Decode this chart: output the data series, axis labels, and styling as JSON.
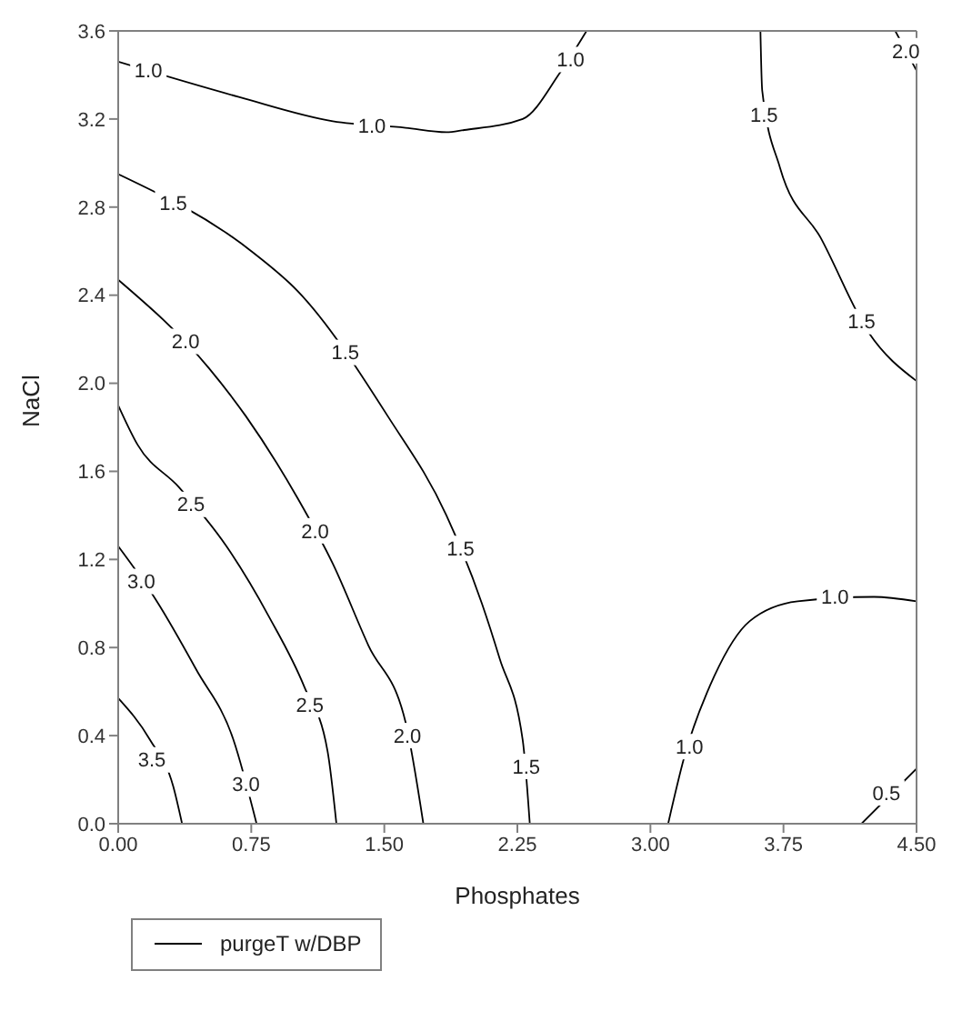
{
  "chart_data": {
    "type": "line",
    "xlabel": "Phosphates",
    "ylabel": "NaCl",
    "xlim": [
      0,
      4.5
    ],
    "ylim": [
      0,
      3.6
    ],
    "xticks": [
      {
        "value": 0,
        "label": "0.00"
      },
      0.75,
      {
        "value": 1.5,
        "label": "1.50"
      },
      2.25,
      {
        "value": 3,
        "label": "3.00"
      },
      3.75,
      {
        "value": 4.5,
        "label": "4.50"
      }
    ],
    "yticks": [
      {
        "value": 0,
        "label": "0.0"
      },
      0.4,
      0.8,
      1.2,
      1.6,
      {
        "value": 2,
        "label": "2.0"
      },
      2.4,
      2.8,
      3.2,
      3.6
    ],
    "legend": "bottom left",
    "line_style": "solid",
    "grid": false,
    "series": [
      {
        "name": "purgeT w/DBP",
        "color": "#000000",
        "x": [
          0,
          0.68,
          1.21,
          1.62,
          1.85,
          1.95,
          2.28,
          2.49,
          2.64
        ],
        "values": [
          3.46,
          3.3,
          3.19,
          3.16,
          3.14,
          3.15,
          3.2,
          3.41,
          3.6
        ]
      },
      {
        "color": "#000000",
        "x": [
          3.62,
          3.63,
          3.73,
          3.96,
          4.23,
          4.5
        ],
        "values": [
          3.6,
          3.33,
          2.98,
          2.66,
          2.23,
          2.01
        ]
      },
      {
        "color": "#000000",
        "x": [
          4.38,
          4.5
        ],
        "values": [
          3.6,
          3.42
        ]
      },
      {
        "color": "#000000",
        "x": [
          0,
          0.75,
          1.01,
          1.52,
          1.85,
          2.05,
          2.15,
          2.28,
          2.32
        ],
        "values": [
          2.95,
          2.6,
          2.42,
          1.85,
          1.4,
          1.0,
          0.75,
          0.38,
          0
        ]
      },
      {
        "color": "#000000",
        "x": [
          0,
          0.51,
          0.72,
          1.01,
          1.21,
          1.41,
          1.62,
          1.72
        ],
        "values": [
          2.47,
          2.07,
          1.85,
          1.48,
          1.18,
          0.81,
          0.46,
          0
        ]
      },
      {
        "color": "#000000",
        "x": [
          0,
          0.11,
          0.34,
          0.61,
          0.85,
          1.05,
          1.18,
          1.23
        ],
        "values": [
          1.9,
          1.72,
          1.53,
          1.26,
          0.94,
          0.62,
          0.33,
          0
        ]
      },
      {
        "color": "#000000",
        "x": [
          0,
          0.21,
          0.44,
          0.65,
          0.78
        ],
        "values": [
          1.26,
          1.02,
          0.7,
          0.38,
          0
        ]
      },
      {
        "color": "#000000",
        "x": [
          0,
          0.18,
          0.31,
          0.36
        ],
        "values": [
          0.57,
          0.38,
          0.17,
          0
        ]
      },
      {
        "color": "#000000",
        "x": [
          3.1,
          3.19,
          3.36,
          3.56,
          3.83,
          4.26,
          4.5
        ],
        "values": [
          0,
          0.3,
          0.67,
          0.92,
          1.01,
          1.03,
          1.01
        ]
      },
      {
        "color": "#000000",
        "x": [
          4.19,
          4.5
        ],
        "values": [
          0,
          0.25
        ]
      }
    ],
    "annotations": [
      {
        "text": "1.0",
        "x": 0.17,
        "y": 3.42
      },
      {
        "text": "1.0",
        "x": 1.43,
        "y": 3.17
      },
      {
        "text": "1.0",
        "x": 2.55,
        "y": 3.47
      },
      {
        "text": "1.5",
        "x": 3.64,
        "y": 3.22
      },
      {
        "text": "1.5",
        "x": 4.19,
        "y": 2.28
      },
      {
        "text": "2.0",
        "x": 4.44,
        "y": 3.51
      },
      {
        "text": "1.5",
        "x": 0.31,
        "y": 2.82
      },
      {
        "text": "2.0",
        "x": 0.38,
        "y": 2.19
      },
      {
        "text": "1.5",
        "x": 1.28,
        "y": 2.14
      },
      {
        "text": "2.5",
        "x": 0.41,
        "y": 1.45
      },
      {
        "text": "2.0",
        "x": 1.11,
        "y": 1.33
      },
      {
        "text": "1.5",
        "x": 1.93,
        "y": 1.25
      },
      {
        "text": "3.0",
        "x": 0.13,
        "y": 1.1
      },
      {
        "text": "2.5",
        "x": 1.08,
        "y": 0.54
      },
      {
        "text": "2.0",
        "x": 1.63,
        "y": 0.4
      },
      {
        "text": "3.5",
        "x": 0.19,
        "y": 0.29
      },
      {
        "text": "3.0",
        "x": 0.72,
        "y": 0.18
      },
      {
        "text": "1.5",
        "x": 2.3,
        "y": 0.26
      },
      {
        "text": "1.0",
        "x": 3.22,
        "y": 0.35
      },
      {
        "text": "1.0",
        "x": 4.04,
        "y": 1.03
      },
      {
        "text": "0.5",
        "x": 4.33,
        "y": 0.14
      }
    ]
  }
}
